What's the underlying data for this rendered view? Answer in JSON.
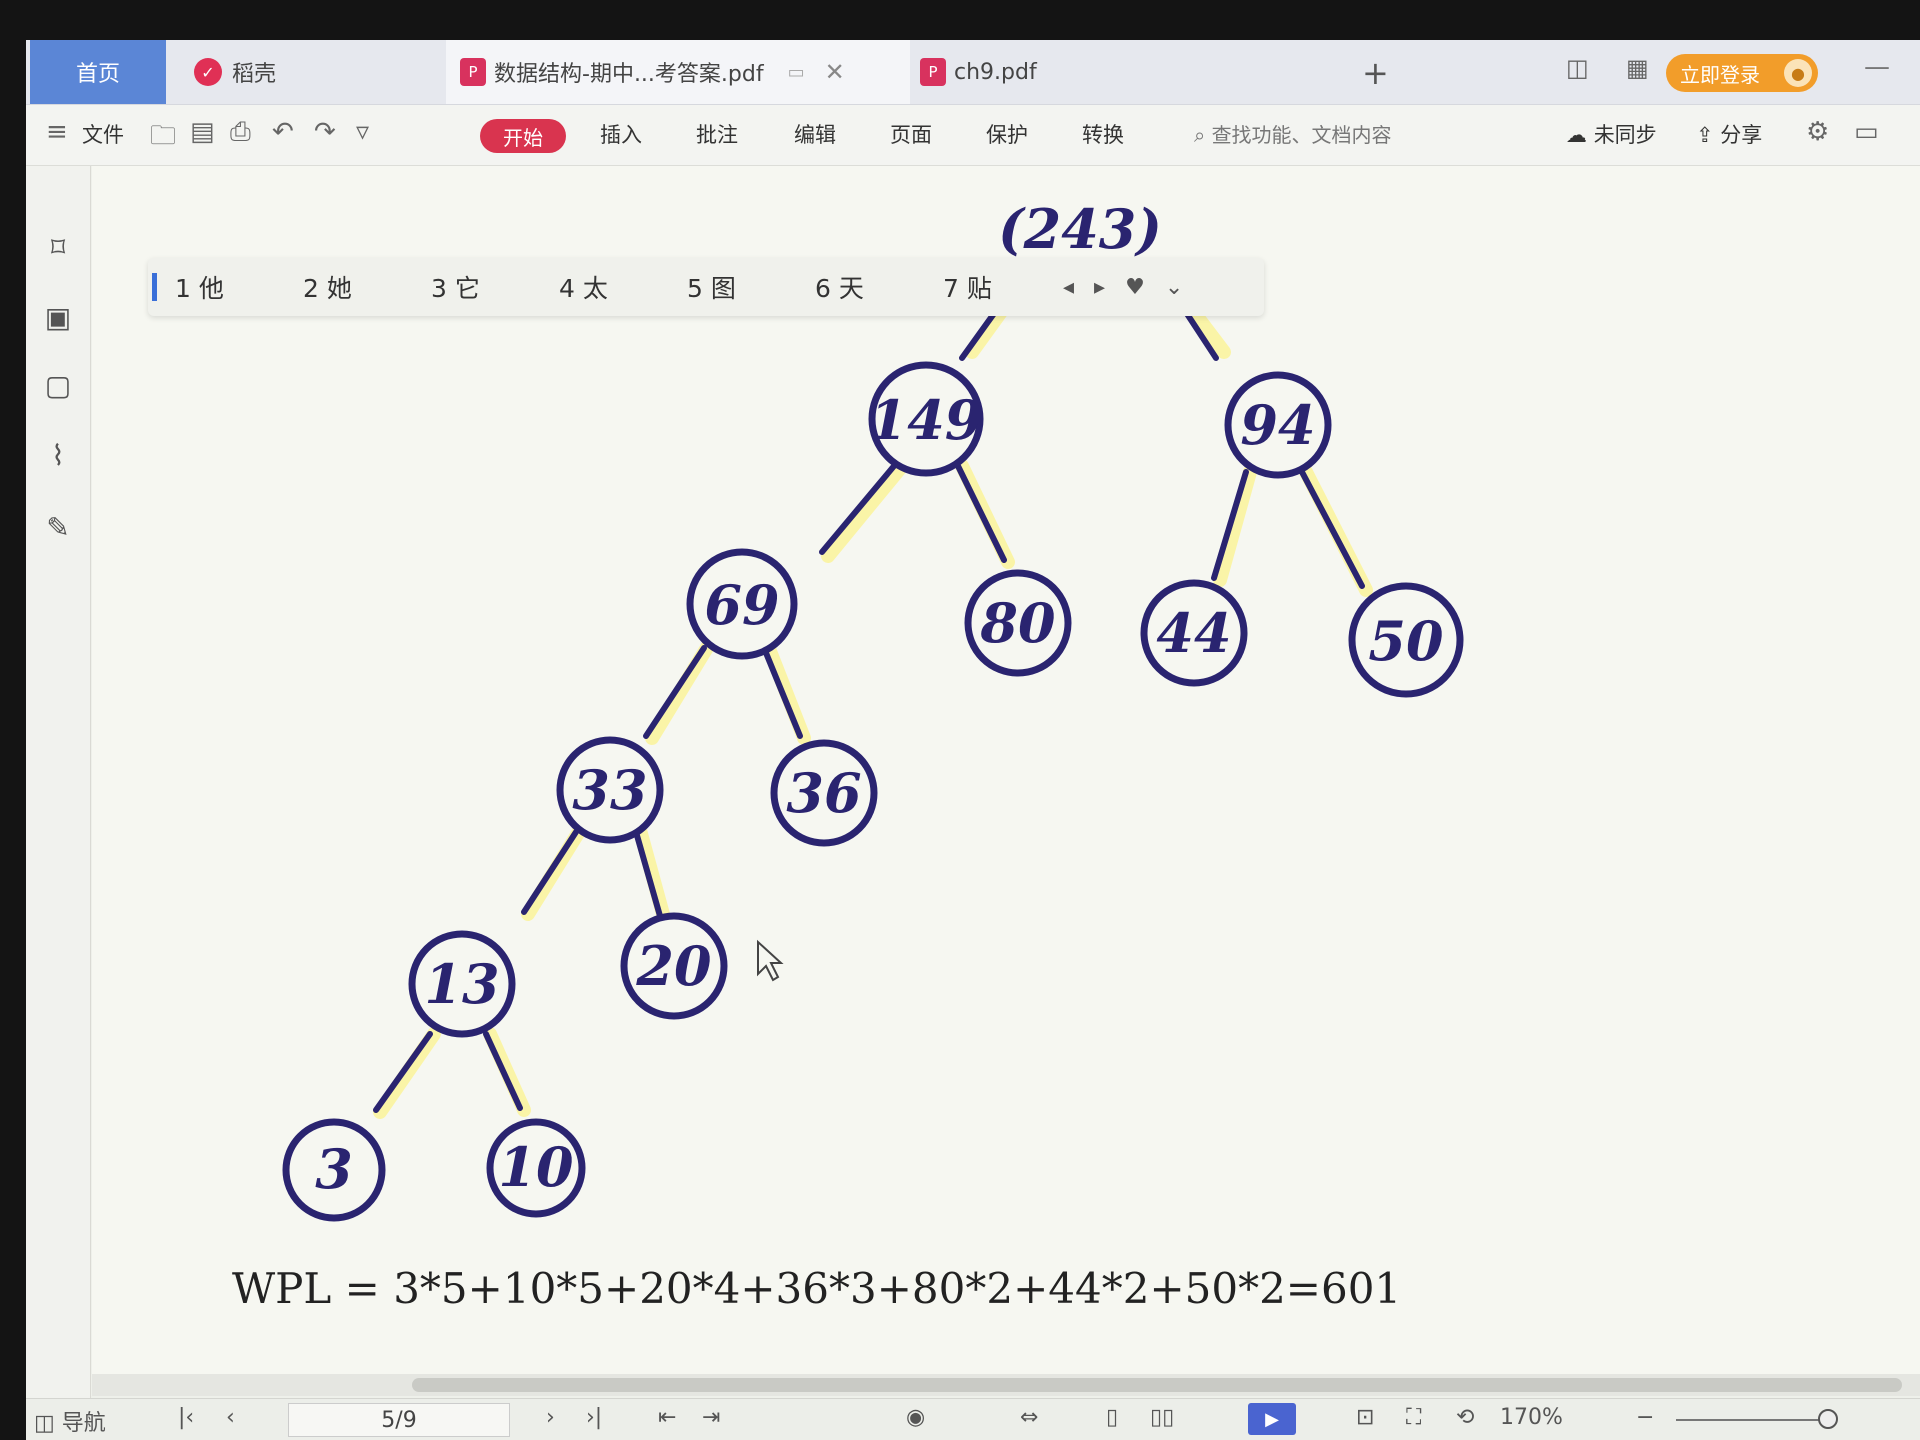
{
  "tabs": {
    "home": "首页",
    "wps": "稻壳",
    "doc1": "数据结构-期中...考答案.pdf",
    "doc2": "ch9.pdf",
    "add": "+",
    "login": "立即登录"
  },
  "ribbon": {
    "menu": "文件",
    "start": "开始",
    "insert": "插入",
    "annotate": "批注",
    "edit": "编辑",
    "page": "页面",
    "protect": "保护",
    "convert": "转换",
    "search_placeholder": "查找功能、文档内容",
    "unsynced": "未同步",
    "share": "分享"
  },
  "quicknav": {
    "items": [
      "1 他",
      "2 她",
      "3 它",
      "4 太",
      "5 图",
      "6 天",
      "7 贴"
    ]
  },
  "tree": {
    "root_label": "(243)",
    "nodes": [
      "149",
      "94",
      "69",
      "80",
      "44",
      "50",
      "33",
      "36",
      "13",
      "20",
      "3",
      "10"
    ]
  },
  "wpl": "WPL = 3*5+10*5+20*4+36*3+80*2+44*2+50*2=601",
  "status": {
    "nav": "导航",
    "page": "5/9",
    "zoom": "170%"
  },
  "colors": {
    "ink": "#2a2470",
    "highlight": "#fff36b",
    "accent": "#d9344f",
    "tab_active": "#5b86d6"
  }
}
